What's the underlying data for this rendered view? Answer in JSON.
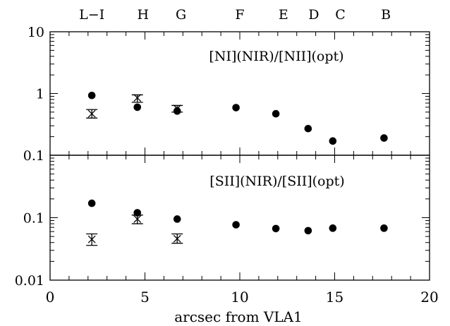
{
  "chart_data": [
    {
      "type": "scatter",
      "title": "[NI](NIR)/[NII](opt)",
      "yscale": "log",
      "ylim": [
        0.1,
        10
      ],
      "xlim": [
        0,
        20
      ],
      "ytick_labels": [
        "10",
        "1",
        "0.1"
      ],
      "series": [
        {
          "marker": "filled-circle",
          "x": [
            2.2,
            4.6,
            6.7,
            9.8,
            11.9,
            13.6,
            14.9,
            17.6
          ],
          "y": [
            0.93,
            0.6,
            0.52,
            0.59,
            0.47,
            0.27,
            0.17,
            0.19
          ]
        },
        {
          "marker": "star-with-errorbar",
          "x": [
            2.2,
            4.6,
            6.7
          ],
          "y": [
            0.47,
            0.85,
            0.57
          ],
          "y_low": [
            0.4,
            0.72,
            0.5
          ],
          "y_high": [
            0.55,
            0.95,
            0.64
          ]
        }
      ]
    },
    {
      "type": "scatter",
      "title": "[SII](NIR)/[SII](opt)",
      "yscale": "log",
      "ylim": [
        0.01,
        1
      ],
      "xlim": [
        0,
        20
      ],
      "ytick_labels": [
        "0.1",
        "0.01"
      ],
      "series": [
        {
          "marker": "filled-circle",
          "x": [
            2.2,
            4.6,
            6.7,
            9.8,
            11.9,
            13.6,
            14.9,
            17.6
          ],
          "y": [
            0.17,
            0.12,
            0.095,
            0.077,
            0.067,
            0.062,
            0.068,
            0.068
          ]
        },
        {
          "marker": "star-with-errorbar",
          "x": [
            2.2,
            4.6,
            6.7
          ],
          "y": [
            0.045,
            0.095,
            0.046
          ],
          "y_low": [
            0.036,
            0.08,
            0.039
          ],
          "y_high": [
            0.055,
            0.11,
            0.055
          ]
        }
      ]
    }
  ],
  "x_axis": {
    "xlabel": "arcsec from VLA1",
    "tick_values": [
      0,
      5,
      10,
      15,
      20
    ],
    "tick_labels": [
      "0",
      "5",
      "10",
      "15",
      "20"
    ]
  },
  "top_labels": [
    {
      "text": "L−I",
      "x": 2.2
    },
    {
      "text": "H",
      "x": 4.9
    },
    {
      "text": "G",
      "x": 6.9
    },
    {
      "text": "F",
      "x": 10.0
    },
    {
      "text": "E",
      "x": 12.3
    },
    {
      "text": "D",
      "x": 13.9
    },
    {
      "text": "C",
      "x": 15.3
    },
    {
      "text": "B",
      "x": 17.7
    }
  ]
}
